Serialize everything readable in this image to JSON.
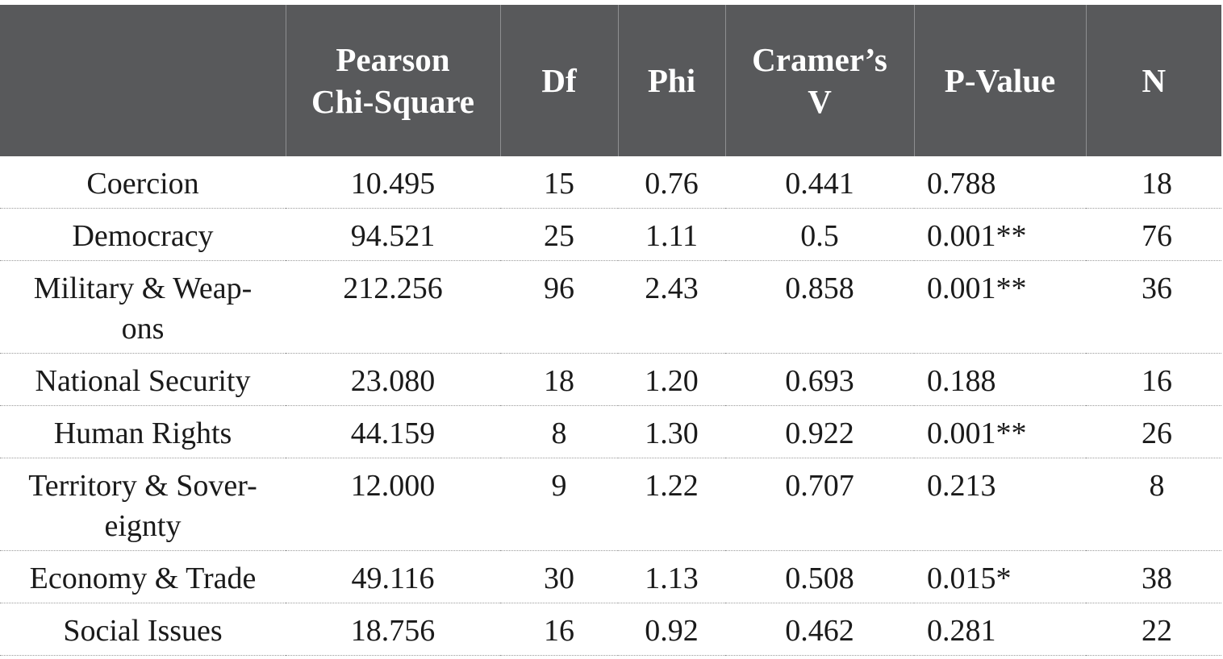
{
  "table": {
    "headers": {
      "category": "",
      "pearson_line1": "Pearson",
      "pearson_line2": "Chi-Square",
      "df": "Df",
      "phi": "Phi",
      "cramers_line1": "Cramer’s",
      "cramers_line2": "V",
      "pvalue": "P-Value",
      "n": "N"
    },
    "rows": [
      {
        "label_line1": "Coercion",
        "label_line2": "",
        "chi": "10.495",
        "df": "15",
        "phi": "0.76",
        "v": "0.441",
        "p": "0.788",
        "n": "18"
      },
      {
        "label_line1": "Democracy",
        "label_line2": "",
        "chi": "94.521",
        "df": "25",
        "phi": "1.11",
        "v": "0.5",
        "p": "0.001**",
        "n": "76"
      },
      {
        "label_line1": "Military & Weap-",
        "label_line2": "ons",
        "chi": "212.256",
        "df": "96",
        "phi": "2.43",
        "v": "0.858",
        "p": "0.001**",
        "n": "36"
      },
      {
        "label_line1": "National Security",
        "label_line2": "",
        "chi": "23.080",
        "df": "18",
        "phi": "1.20",
        "v": "0.693",
        "p": "0.188",
        "n": "16"
      },
      {
        "label_line1": "Human Rights",
        "label_line2": "",
        "chi": "44.159",
        "df": "8",
        "phi": "1.30",
        "v": "0.922",
        "p": "0.001**",
        "n": "26"
      },
      {
        "label_line1": "Territory & Sover-",
        "label_line2": "eignty",
        "chi": "12.000",
        "df": "9",
        "phi": "1.22",
        "v": "0.707",
        "p": "0.213",
        "n": "8"
      },
      {
        "label_line1": "Economy & Trade",
        "label_line2": "",
        "chi": "49.116",
        "df": "30",
        "phi": "1.13",
        "v": "0.508",
        "p": "0.015*",
        "n": "38"
      },
      {
        "label_line1": "Social Issues",
        "label_line2": "",
        "chi": "18.756",
        "df": "16",
        "phi": "0.92",
        "v": "0.462",
        "p": "0.281",
        "n": "22"
      }
    ]
  },
  "colors": {
    "header_bg": "#58595b",
    "header_text": "#ffffff",
    "body_text": "#1a1a1a",
    "row_divider": "#9a9a9a"
  }
}
